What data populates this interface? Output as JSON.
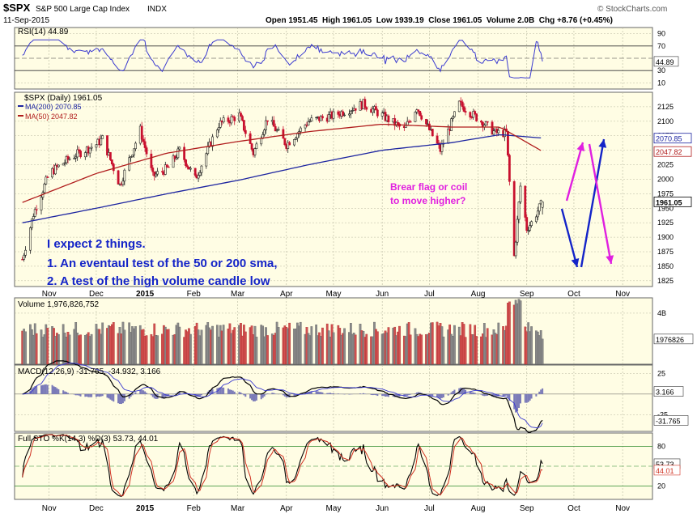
{
  "header": {
    "symbol": "$SPX",
    "name": "S&P 500 Large Cap Index",
    "exchange": "INDX",
    "date": "11-Sep-2015",
    "ohlc": "Open 1951.45  High 1961.05  Low 1939.19  Close 1961.05  Volume 2.0B  Chg +8.76 (+0.45%)",
    "watermark": "© StockCharts.com"
  },
  "colors": {
    "panel_bg": "#fffde4",
    "grid": "#b8b8a0",
    "price_up": "#222222",
    "price_down": "#c8102e",
    "ma200": "#1c24a0",
    "ma50": "#b01c1c",
    "rsi": "#3a3ad0",
    "annotation_blue": "#1424c8",
    "annotation_magenta": "#e020e0"
  },
  "panels": {
    "rsi": {
      "label": "RSI(14) 44.89",
      "ticks": [
        "90",
        "70",
        "30",
        "10"
      ],
      "value_tag": "44.89"
    },
    "price": {
      "label": "$SPX (Daily) 1961.05",
      "legend": [
        "MA(200) 2070.85",
        "MA(50) 2047.82"
      ],
      "ticks": [
        "2125",
        "2100",
        "2075",
        "2050",
        "2025",
        "2000",
        "1975",
        "1950",
        "1925",
        "1900",
        "1875",
        "1850",
        "1825"
      ],
      "value_tags": [
        "2070.85",
        "2047.82",
        "1961.05"
      ]
    },
    "volume": {
      "label": "Volume 1,976,826,752",
      "ticks": [
        "4B"
      ],
      "value_tag": "1976826"
    },
    "macd": {
      "label": "MACD(12,26,9) -31.765, -34.932, 3.166",
      "ticks": [
        "25",
        "-25"
      ],
      "value_tags": [
        "3.166",
        "-31.765"
      ]
    },
    "sto": {
      "label": "Full STO %K(14,3) %D(3) 53.73, 44.01",
      "ticks": [
        "80",
        "20"
      ],
      "value_tags": [
        "53.73",
        "44.01"
      ]
    }
  },
  "x_axis_labels": [
    "Nov",
    "Dec",
    "2015",
    "Feb",
    "Mar",
    "Apr",
    "May",
    "Jun",
    "Jul",
    "Aug",
    "Sep",
    "Oct",
    "Nov"
  ],
  "annotations": {
    "expect_line1": "I expect 2 things.",
    "expect_line2": "1.  An eventaul test of the 50 or 200 sma,",
    "expect_line3": "2.  A test of the high volume candle low",
    "flag_line1": "Brear flag or coil",
    "flag_line2": "to move higher?"
  },
  "chart_data": {
    "type": "line",
    "title": "$SPX S&P 500 Large Cap Index",
    "series": [
      {
        "name": "$SPX (Daily)",
        "x": [
          "2014-10-15",
          "2014-10-22",
          "2014-11-01",
          "2014-11-15",
          "2014-12-01",
          "2014-12-05",
          "2014-12-16",
          "2014-12-29",
          "2015-01-06",
          "2015-01-16",
          "2015-01-23",
          "2015-02-02",
          "2015-02-17",
          "2015-03-02",
          "2015-03-11",
          "2015-03-20",
          "2015-04-01",
          "2015-04-15",
          "2015-05-01",
          "2015-05-20",
          "2015-06-01",
          "2015-06-15",
          "2015-06-23",
          "2015-07-08",
          "2015-07-20",
          "2015-08-03",
          "2015-08-12",
          "2015-08-19",
          "2015-08-24",
          "2015-08-28",
          "2015-09-01",
          "2015-09-04",
          "2015-09-11"
        ],
        "values": [
          1862,
          1940,
          2010,
          2038,
          2060,
          2070,
          1990,
          2085,
          2005,
          2020,
          2050,
          2000,
          2095,
          2110,
          2045,
          2105,
          2060,
          2100,
          2110,
          2130,
          2110,
          2085,
          2125,
          2050,
          2130,
          2100,
          2080,
          2080,
          1867,
          1988,
          1915,
          1925,
          1961
        ]
      },
      {
        "name": "MA(200)",
        "x": [
          "2014-10-15",
          "2014-12-01",
          "2015-01-15",
          "2015-03-01",
          "2015-04-15",
          "2015-06-01",
          "2015-07-15",
          "2015-08-15",
          "2015-09-11"
        ],
        "values": [
          1925,
          1950,
          1975,
          1998,
          2025,
          2050,
          2063,
          2077,
          2071
        ]
      },
      {
        "name": "MA(50)",
        "x": [
          "2014-10-15",
          "2014-12-01",
          "2015-01-15",
          "2015-03-01",
          "2015-04-15",
          "2015-06-01",
          "2015-07-15",
          "2015-08-15",
          "2015-09-11"
        ],
        "values": [
          1960,
          2010,
          2045,
          2065,
          2082,
          2095,
          2090,
          2090,
          2048
        ]
      }
    ],
    "xlabel": "",
    "ylabel": "",
    "ylim": [
      1815,
      2150
    ],
    "grid": true,
    "legend": "top-left",
    "indicators": {
      "rsi14": 44.89,
      "ma200": 2070.85,
      "ma50": 2047.82,
      "volume": 1976826752,
      "macd": {
        "macd": -31.765,
        "signal": -34.932,
        "histogram": 3.166
      },
      "full_sto": {
        "k": 53.73,
        "d": 44.01
      }
    },
    "last_bar": {
      "open": 1951.45,
      "high": 1961.05,
      "low": 1939.19,
      "close": 1961.05,
      "change": 8.76,
      "change_pct": 0.45
    }
  }
}
